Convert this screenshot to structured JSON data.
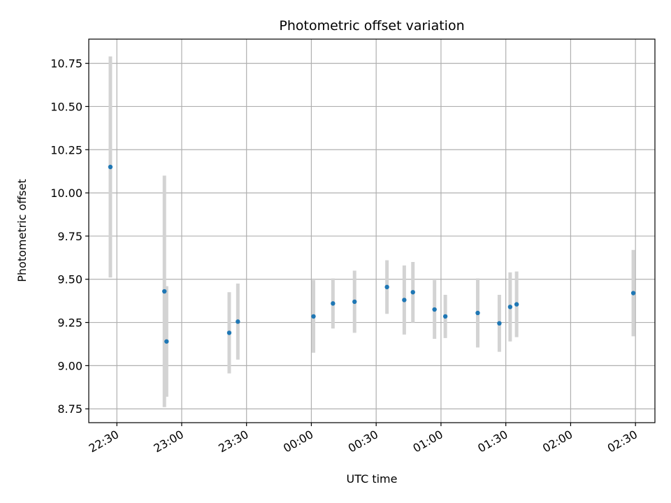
{
  "chart_data": {
    "type": "scatter",
    "title": "Photometric offset variation",
    "xlabel": "UTC time",
    "ylabel": "Photometric offset",
    "grid": true,
    "xlim": [
      "22:17",
      "02:39"
    ],
    "ylim": [
      8.67,
      10.89
    ],
    "x_ticks": [
      "22:30",
      "23:00",
      "23:30",
      "00:00",
      "00:30",
      "01:00",
      "01:30",
      "02:00",
      "02:30"
    ],
    "y_ticks": [
      "8.75",
      "9.00",
      "9.25",
      "9.50",
      "9.75",
      "10.00",
      "10.25",
      "10.50",
      "10.75"
    ],
    "colors": {
      "point": "#1f77b4",
      "errorbar": "#d3d3d3",
      "grid": "#b0b0b0"
    },
    "series": [
      {
        "points": [
          {
            "x": "22:27",
            "y": 10.15,
            "err": 0.64
          },
          {
            "x": "22:52",
            "y": 9.43,
            "err": 0.67
          },
          {
            "x": "22:53",
            "y": 9.14,
            "err": 0.32
          },
          {
            "x": "23:22",
            "y": 9.19,
            "err": 0.235
          },
          {
            "x": "23:26",
            "y": 9.255,
            "err": 0.22
          },
          {
            "x": "00:01",
            "y": 9.285,
            "err": 0.21
          },
          {
            "x": "00:10",
            "y": 9.36,
            "err": 0.145
          },
          {
            "x": "00:20",
            "y": 9.37,
            "err": 0.18
          },
          {
            "x": "00:35",
            "y": 9.455,
            "err": 0.155
          },
          {
            "x": "00:43",
            "y": 9.38,
            "err": 0.2
          },
          {
            "x": "00:47",
            "y": 9.425,
            "err": 0.175
          },
          {
            "x": "00:57",
            "y": 9.325,
            "err": 0.17
          },
          {
            "x": "01:02",
            "y": 9.285,
            "err": 0.125
          },
          {
            "x": "01:17",
            "y": 9.305,
            "err": 0.2
          },
          {
            "x": "01:27",
            "y": 9.245,
            "err": 0.165
          },
          {
            "x": "01:32",
            "y": 9.34,
            "err": 0.2
          },
          {
            "x": "01:35",
            "y": 9.355,
            "err": 0.19
          },
          {
            "x": "02:29",
            "y": 9.42,
            "err": 0.25
          }
        ]
      }
    ]
  }
}
